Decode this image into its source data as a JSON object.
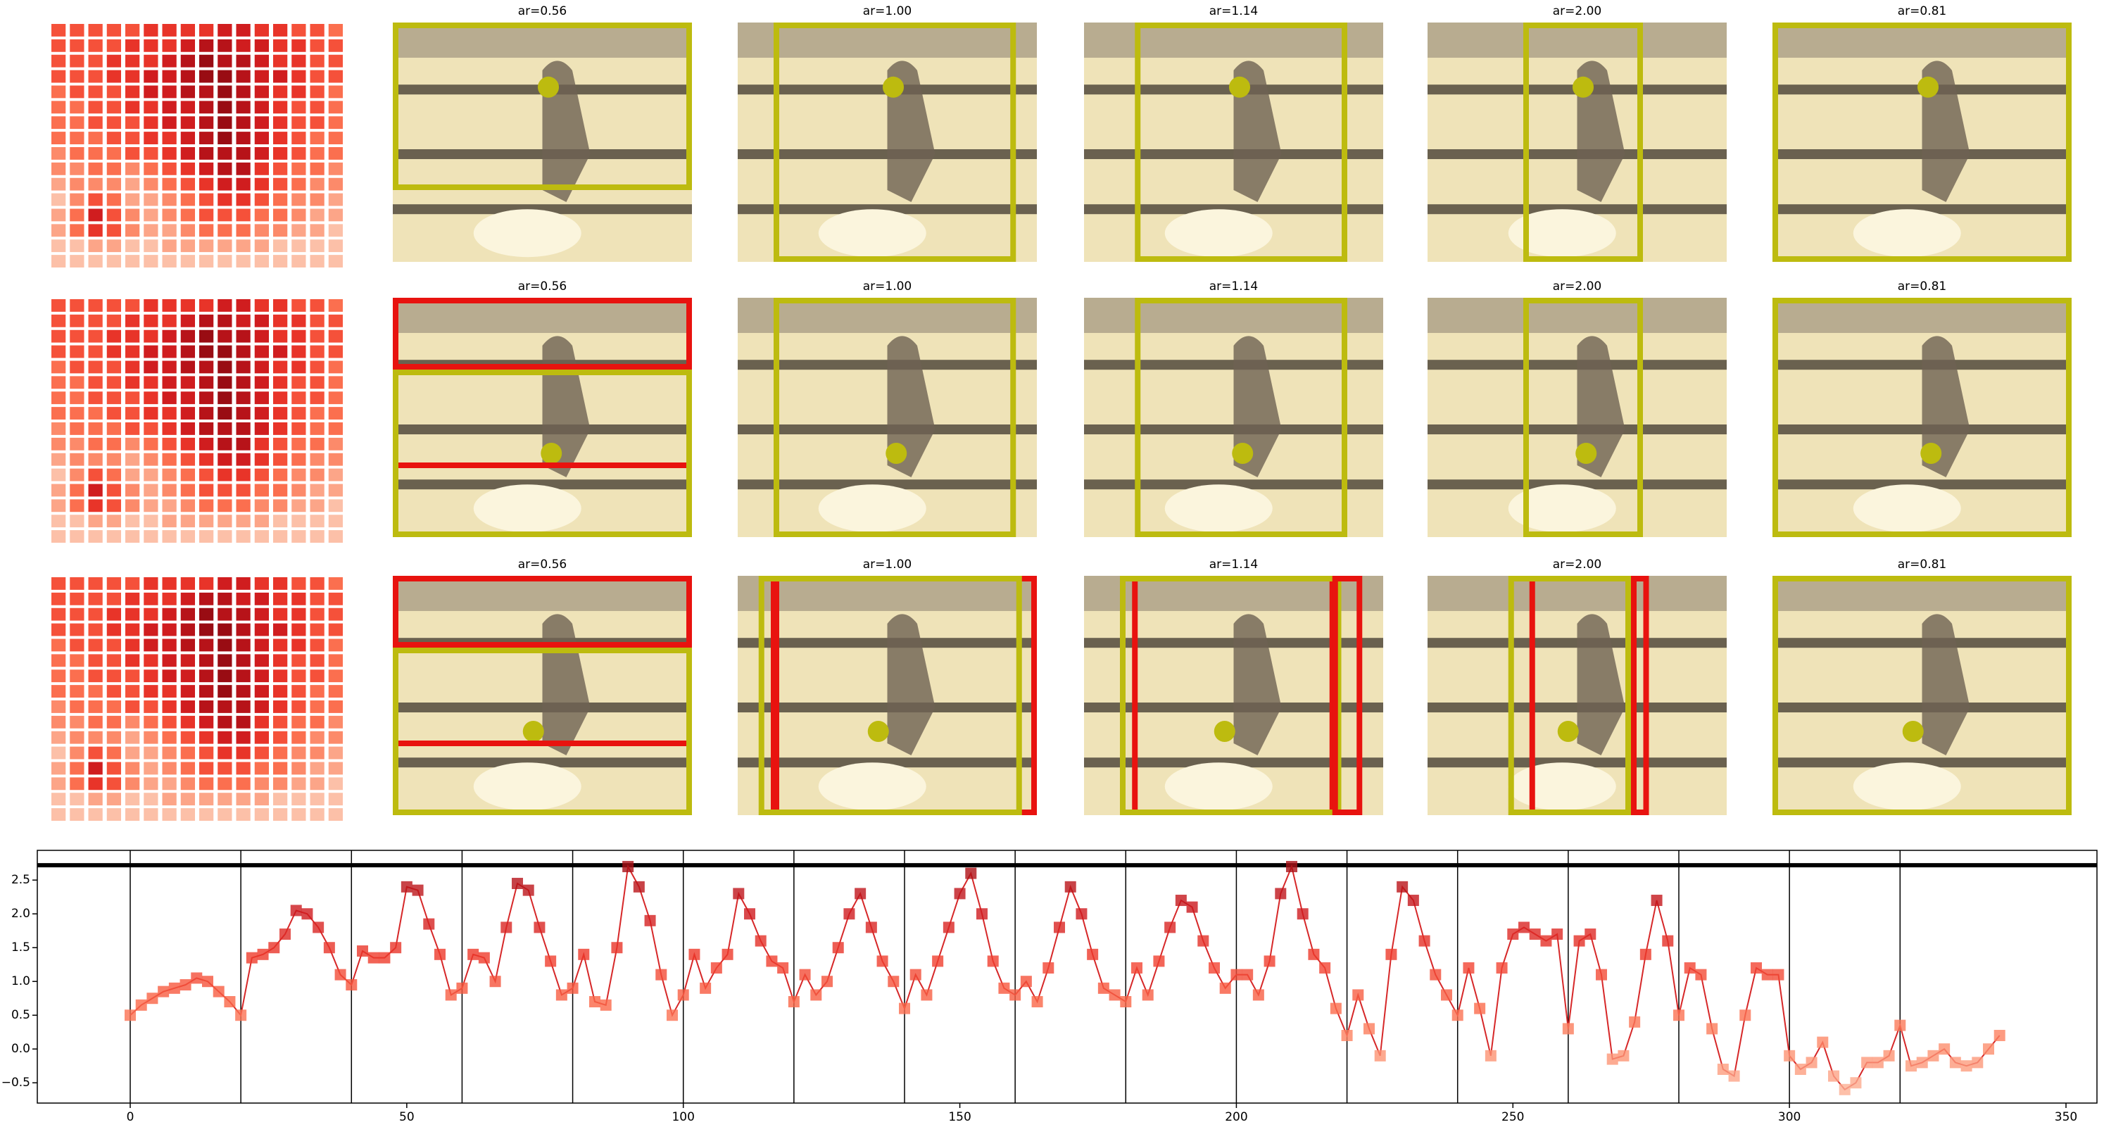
{
  "panels": {
    "titles": [
      [
        "ar=0.56",
        "ar=1.00",
        "ar=1.14",
        "ar=2.00",
        "ar=0.81"
      ],
      [
        "ar=0.56",
        "ar=1.00",
        "ar=1.14",
        "ar=2.00",
        "ar=0.81"
      ],
      [
        "ar=0.56",
        "ar=1.00",
        "ar=1.14",
        "ar=2.00",
        "ar=0.81"
      ]
    ],
    "heatmap": [
      [
        5,
        5,
        5,
        5,
        5,
        6,
        6,
        6,
        6,
        7,
        7,
        6,
        6,
        5,
        5,
        4
      ],
      [
        5,
        5,
        5,
        5,
        6,
        6,
        6,
        7,
        8,
        8,
        7,
        7,
        6,
        6,
        5,
        5
      ],
      [
        5,
        5,
        5,
        6,
        6,
        6,
        7,
        8,
        9,
        8,
        8,
        7,
        6,
        6,
        5,
        5
      ],
      [
        5,
        5,
        5,
        6,
        6,
        7,
        7,
        8,
        9,
        9,
        8,
        7,
        7,
        6,
        5,
        5
      ],
      [
        4,
        5,
        5,
        5,
        6,
        7,
        7,
        8,
        8,
        9,
        8,
        7,
        6,
        6,
        5,
        4
      ],
      [
        4,
        4,
        5,
        5,
        6,
        6,
        7,
        7,
        8,
        9,
        8,
        7,
        6,
        5,
        5,
        4
      ],
      [
        4,
        4,
        5,
        5,
        5,
        6,
        7,
        7,
        8,
        9,
        8,
        7,
        6,
        5,
        5,
        4
      ],
      [
        4,
        4,
        4,
        5,
        5,
        6,
        6,
        7,
        8,
        9,
        8,
        7,
        6,
        5,
        4,
        4
      ],
      [
        3,
        4,
        4,
        4,
        5,
        5,
        6,
        7,
        8,
        8,
        8,
        7,
        6,
        5,
        4,
        4
      ],
      [
        3,
        3,
        4,
        4,
        3,
        4,
        5,
        6,
        7,
        8,
        8,
        6,
        5,
        4,
        4,
        3
      ],
      [
        2,
        3,
        3,
        3,
        2,
        3,
        4,
        5,
        6,
        7,
        7,
        6,
        5,
        4,
        3,
        3
      ],
      [
        1,
        3,
        5,
        4,
        2,
        2,
        3,
        4,
        5,
        6,
        6,
        5,
        4,
        3,
        3,
        2
      ],
      [
        2,
        4,
        7,
        5,
        3,
        2,
        3,
        4,
        5,
        5,
        5,
        4,
        4,
        3,
        2,
        2
      ],
      [
        2,
        4,
        6,
        5,
        3,
        2,
        2,
        3,
        4,
        4,
        4,
        3,
        3,
        2,
        2,
        1
      ],
      [
        1,
        1,
        2,
        2,
        1,
        1,
        2,
        2,
        2,
        2,
        2,
        2,
        1,
        1,
        1,
        1
      ],
      [
        1,
        1,
        1,
        1,
        1,
        1,
        1,
        1,
        1,
        1,
        1,
        1,
        1,
        1,
        1,
        1
      ]
    ]
  },
  "chart_data": {
    "type": "line",
    "color": "#d62728",
    "x": [
      0,
      2,
      4,
      6,
      8,
      10,
      12,
      14,
      16,
      18,
      20,
      22,
      24,
      26,
      28,
      30,
      32,
      34,
      36,
      38,
      40,
      42,
      44,
      46,
      48,
      50,
      52,
      54,
      56,
      58,
      60,
      62,
      64,
      66,
      68,
      70,
      72,
      74,
      76,
      78,
      80,
      82,
      84,
      86,
      88,
      90,
      92,
      94,
      96,
      98,
      100,
      102,
      104,
      106,
      108,
      110,
      112,
      114,
      116,
      118,
      120,
      122,
      124,
      126,
      128,
      130,
      132,
      134,
      136,
      138,
      140,
      142,
      144,
      146,
      148,
      150,
      152,
      154,
      156,
      158,
      160,
      162,
      164,
      166,
      168,
      170,
      172,
      174,
      176,
      178,
      180,
      182,
      184,
      186,
      188,
      190,
      192,
      194,
      196,
      198,
      200,
      202,
      204,
      206,
      208,
      210,
      212,
      214,
      216,
      218,
      220,
      222,
      224,
      226,
      228,
      230,
      232,
      234,
      236,
      238,
      240,
      242,
      244,
      246,
      248,
      250,
      252,
      254,
      256,
      258,
      260,
      262,
      264,
      266,
      268,
      270,
      272,
      274,
      276,
      278,
      280,
      282,
      284,
      286,
      288,
      290,
      292,
      294,
      296,
      298,
      300,
      302,
      304,
      306,
      308,
      310,
      312,
      314,
      316,
      318,
      320,
      322,
      324,
      326,
      328,
      330,
      332,
      334,
      336,
      338
    ],
    "values": [
      0.5,
      0.65,
      0.75,
      0.85,
      0.9,
      0.95,
      1.05,
      1.0,
      0.85,
      0.7,
      0.5,
      1.35,
      1.4,
      1.5,
      1.7,
      2.05,
      2.0,
      1.8,
      1.5,
      1.1,
      0.95,
      1.45,
      1.35,
      1.35,
      1.5,
      2.4,
      2.35,
      1.85,
      1.4,
      0.8,
      0.9,
      1.4,
      1.35,
      1.0,
      1.8,
      2.45,
      2.35,
      1.8,
      1.3,
      0.8,
      0.9,
      1.4,
      0.7,
      0.65,
      1.5,
      2.7,
      2.4,
      1.9,
      1.1,
      0.5,
      0.8,
      1.4,
      0.9,
      1.2,
      1.4,
      2.3,
      2.0,
      1.6,
      1.3,
      1.2,
      0.7,
      1.1,
      0.8,
      1.0,
      1.5,
      2.0,
      2.3,
      1.8,
      1.3,
      1.0,
      0.6,
      1.1,
      0.8,
      1.3,
      1.8,
      2.3,
      2.6,
      2.0,
      1.3,
      0.9,
      0.8,
      1.0,
      0.7,
      1.2,
      1.8,
      2.4,
      2.0,
      1.4,
      0.9,
      0.8,
      0.7,
      1.2,
      0.8,
      1.3,
      1.8,
      2.2,
      2.1,
      1.6,
      1.2,
      0.9,
      1.1,
      1.1,
      0.8,
      1.3,
      2.3,
      2.7,
      2.0,
      1.4,
      1.2,
      0.6,
      0.2,
      0.8,
      0.3,
      -0.1,
      1.4,
      2.4,
      2.2,
      1.6,
      1.1,
      0.8,
      0.5,
      1.2,
      0.6,
      -0.1,
      1.2,
      1.7,
      1.8,
      1.7,
      1.6,
      1.7,
      0.3,
      1.6,
      1.7,
      1.1,
      -0.15,
      -0.1,
      0.4,
      1.4,
      2.2,
      1.6,
      0.5,
      1.2,
      1.1,
      0.3,
      -0.3,
      -0.4,
      0.5,
      1.2,
      1.1,
      1.1,
      -0.1,
      -0.3,
      -0.2,
      0.1,
      -0.4,
      -0.6,
      -0.5,
      -0.2,
      -0.2,
      -0.1,
      0.35,
      -0.25,
      -0.2,
      -0.1,
      0.0,
      -0.2,
      -0.25,
      -0.2,
      0.0,
      0.2
    ],
    "xlim": [
      -16.8,
      355.6
    ],
    "ylim": [
      -0.8,
      2.94
    ],
    "xticks": [
      0,
      50,
      100,
      150,
      200,
      250,
      300,
      350
    ],
    "yticks": [
      {
        "value": -0.5,
        "label": "−0.5"
      },
      {
        "value": 0,
        "label": "0.0"
      },
      {
        "value": 0.5,
        "label": "0.5"
      },
      {
        "value": 1,
        "label": "1.0"
      },
      {
        "value": 1.5,
        "label": "1.5"
      },
      {
        "value": 2,
        "label": "2.0"
      },
      {
        "value": 2.5,
        "label": "2.5"
      }
    ],
    "vlines": [
      0,
      20,
      40,
      60,
      80,
      100,
      120,
      140,
      160,
      180,
      200,
      220,
      240,
      260,
      280,
      300,
      320
    ],
    "hline": 2.72
  }
}
